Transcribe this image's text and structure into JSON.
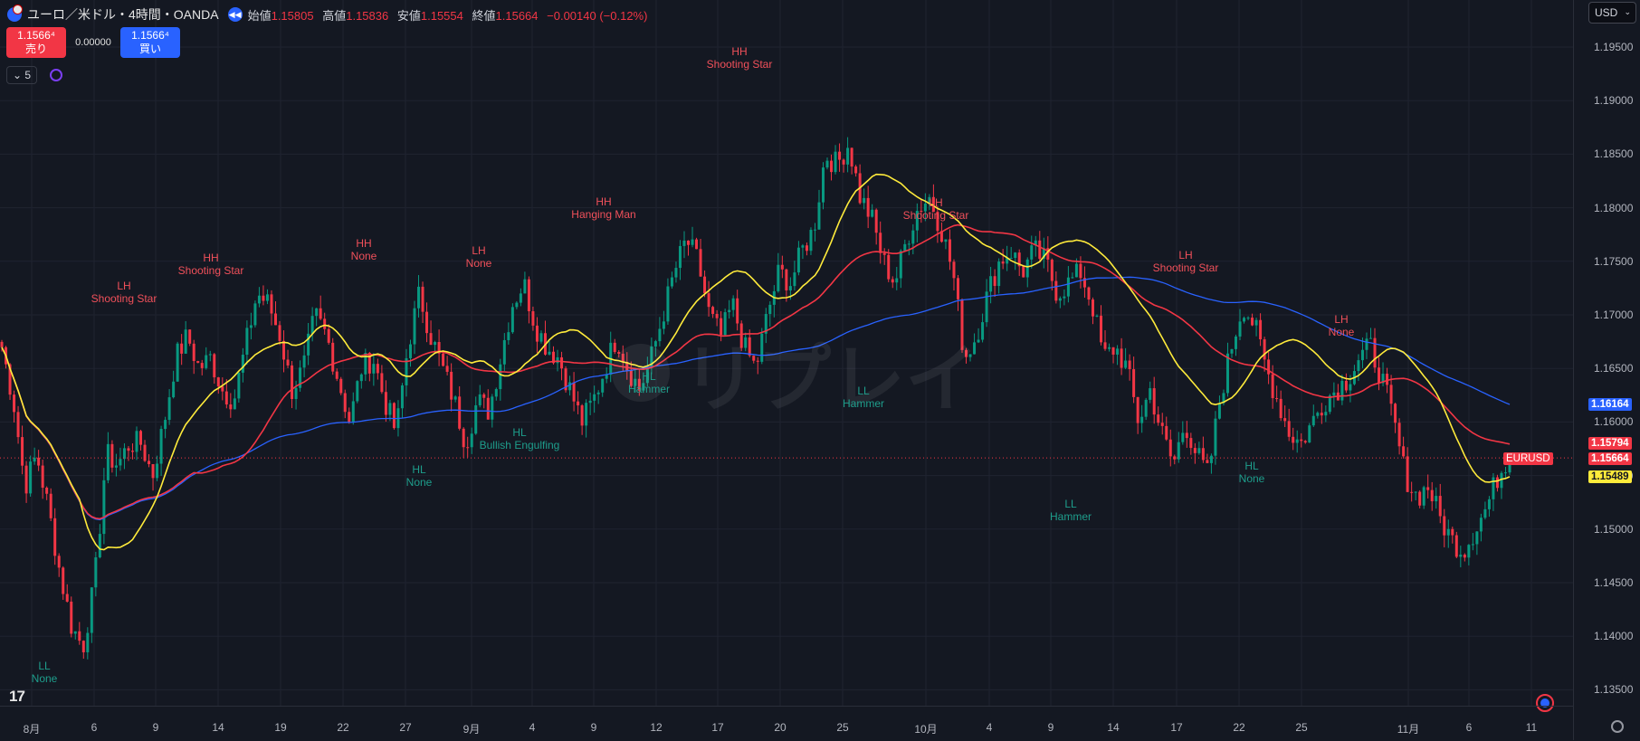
{
  "header": {
    "title": "ユーロ／米ドル・4時間・OANDA",
    "ohlc": [
      {
        "label": "始値",
        "value": "1.15805"
      },
      {
        "label": "高値",
        "value": "1.15836"
      },
      {
        "label": "安値",
        "value": "1.15554"
      },
      {
        "label": "終値",
        "value": "1.15664"
      }
    ],
    "change": "−0.00140 (−0.12%)"
  },
  "trade": {
    "sell_price": "1.1566⁴",
    "sell_label": "売り",
    "spread": "0.00000",
    "buy_price": "1.1566⁴",
    "buy_label": "買い"
  },
  "indicators": {
    "count": "5"
  },
  "currency": "USD",
  "watermark": "リプレイ",
  "price_axis": {
    "ticks": [
      "1.19500",
      "1.19000",
      "1.18500",
      "1.18000",
      "1.17500",
      "1.17000",
      "1.16500",
      "1.16000",
      "1.15500",
      "1.15000",
      "1.14500",
      "1.14000",
      "1.13500"
    ],
    "tags": [
      {
        "text": "1.16164",
        "color": "#2962ff"
      },
      {
        "text": "1.15794",
        "color": "#f23645"
      },
      {
        "text": "1.15664",
        "color": "#f23645"
      },
      {
        "text": "EURUSD",
        "color": "#f23645"
      },
      {
        "text": "1.15489",
        "color": "#ffeb3b"
      }
    ]
  },
  "time_axis": {
    "ticks": [
      "8月",
      "6",
      "9",
      "14",
      "19",
      "22",
      "27",
      "9月",
      "4",
      "9",
      "12",
      "17",
      "20",
      "25",
      "10月",
      "4",
      "9",
      "14",
      "17",
      "22",
      "25",
      "11月",
      "6",
      "11"
    ]
  },
  "annotations": [
    {
      "l1": "LH",
      "l2": "Shooting Star",
      "color": "red"
    },
    {
      "l1": "HH",
      "l2": "Shooting Star",
      "color": "red"
    },
    {
      "l1": "HH",
      "l2": "None",
      "color": "red"
    },
    {
      "l1": "LH",
      "l2": "None",
      "color": "red"
    },
    {
      "l1": "HH",
      "l2": "Hanging Man",
      "color": "red"
    },
    {
      "l1": "HH",
      "l2": "Shooting Star",
      "color": "red"
    },
    {
      "l1": "LH",
      "l2": "Shooting Star",
      "color": "red"
    },
    {
      "l1": "LH",
      "l2": "Shooting Star",
      "color": "red"
    },
    {
      "l1": "LH",
      "l2": "None",
      "color": "red"
    },
    {
      "l1": "LL",
      "l2": "None",
      "color": "green"
    },
    {
      "l1": "HL",
      "l2": "None",
      "color": "green"
    },
    {
      "l1": "HL",
      "l2": "Bullish Engulfing",
      "color": "green"
    },
    {
      "l1": "HL",
      "l2": "Hammer",
      "color": "green"
    },
    {
      "l1": "LL",
      "l2": "Hammer",
      "color": "green"
    },
    {
      "l1": "LL",
      "l2": "Hammer",
      "color": "green"
    },
    {
      "l1": "HL",
      "l2": "None",
      "color": "green"
    }
  ],
  "chart_data": {
    "type": "candlestick",
    "symbol": "EURUSD",
    "timeframe": "4時間",
    "ylim": [
      1.133,
      1.198
    ],
    "last_price": 1.15664,
    "ma_values": {
      "blue": 1.16164,
      "red": 1.15794,
      "yellow": 1.15489
    },
    "colors": {
      "up": "#089981",
      "down": "#f23645",
      "ma_yellow": "#ffeb3b",
      "ma_red": "#f23645",
      "ma_blue": "#2962ff"
    },
    "path_anchors": [
      1.167,
      1.162,
      1.154,
      1.157,
      1.152,
      1.146,
      1.141,
      1.139,
      1.145,
      1.157,
      1.156,
      1.158,
      1.158,
      1.155,
      1.16,
      1.166,
      1.168,
      1.165,
      1.166,
      1.163,
      1.162,
      1.167,
      1.172,
      1.171,
      1.168,
      1.163,
      1.165,
      1.17,
      1.168,
      1.164,
      1.16,
      1.165,
      1.166,
      1.162,
      1.159,
      1.167,
      1.172,
      1.168,
      1.165,
      1.162,
      1.158,
      1.162,
      1.161,
      1.166,
      1.171,
      1.173,
      1.169,
      1.167,
      1.166,
      1.163,
      1.16,
      1.162,
      1.165,
      1.168,
      1.165,
      1.163,
      1.166,
      1.17,
      1.174,
      1.177,
      1.175,
      1.17,
      1.168,
      1.171,
      1.167,
      1.165,
      1.17,
      1.174,
      1.173,
      1.176,
      1.178,
      1.185,
      1.184,
      1.186,
      1.181,
      1.179,
      1.175,
      1.173,
      1.177,
      1.18,
      1.181,
      1.178,
      1.174,
      1.166,
      1.168,
      1.172,
      1.175,
      1.176,
      1.174,
      1.176,
      1.175,
      1.172,
      1.173,
      1.174,
      1.171,
      1.166,
      1.167,
      1.165,
      1.16,
      1.163,
      1.159,
      1.156,
      1.16,
      1.157,
      1.155,
      1.162,
      1.167,
      1.171,
      1.169,
      1.165,
      1.162,
      1.159,
      1.158,
      1.16,
      1.162,
      1.163,
      1.164,
      1.166,
      1.167,
      1.164,
      1.16,
      1.155,
      1.153,
      1.154,
      1.151,
      1.149,
      1.148,
      1.15,
      1.152,
      1.155,
      1.157
    ]
  }
}
